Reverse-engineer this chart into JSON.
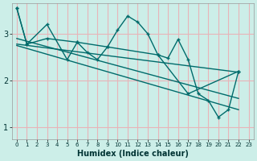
{
  "xlabel": "Humidex (Indice chaleur)",
  "bg_color": "#cceee8",
  "grid_color": "#e8b4b8",
  "line_color": "#006b6b",
  "xlim": [
    -0.5,
    23.5
  ],
  "ylim": [
    0.75,
    3.65
  ],
  "yticks": [
    1,
    2,
    3
  ],
  "xticks": [
    0,
    1,
    2,
    3,
    4,
    5,
    6,
    7,
    8,
    9,
    10,
    11,
    12,
    13,
    14,
    15,
    16,
    17,
    18,
    19,
    20,
    21,
    22,
    23
  ],
  "line1_x": [
    0,
    1,
    3,
    5,
    6,
    7,
    8,
    9,
    10,
    11,
    12,
    13,
    14,
    15,
    16,
    17,
    18,
    19,
    20,
    21,
    22
  ],
  "line1_y": [
    3.55,
    2.78,
    3.2,
    2.45,
    2.82,
    2.6,
    2.45,
    2.72,
    3.08,
    3.38,
    3.25,
    3.0,
    2.55,
    2.48,
    2.88,
    2.45,
    1.72,
    1.58,
    1.22,
    1.38,
    2.2
  ],
  "line2_x": [
    0,
    1,
    3,
    6,
    9,
    14,
    17,
    22
  ],
  "line2_y": [
    3.55,
    2.78,
    2.9,
    2.82,
    2.72,
    2.55,
    1.72,
    2.2
  ],
  "line3_x": [
    0,
    22
  ],
  "line3_y": [
    2.78,
    2.18
  ],
  "line4_x": [
    0,
    22
  ],
  "line4_y": [
    2.9,
    1.62
  ],
  "line5_x": [
    0,
    22
  ],
  "line5_y": [
    2.75,
    1.38
  ]
}
